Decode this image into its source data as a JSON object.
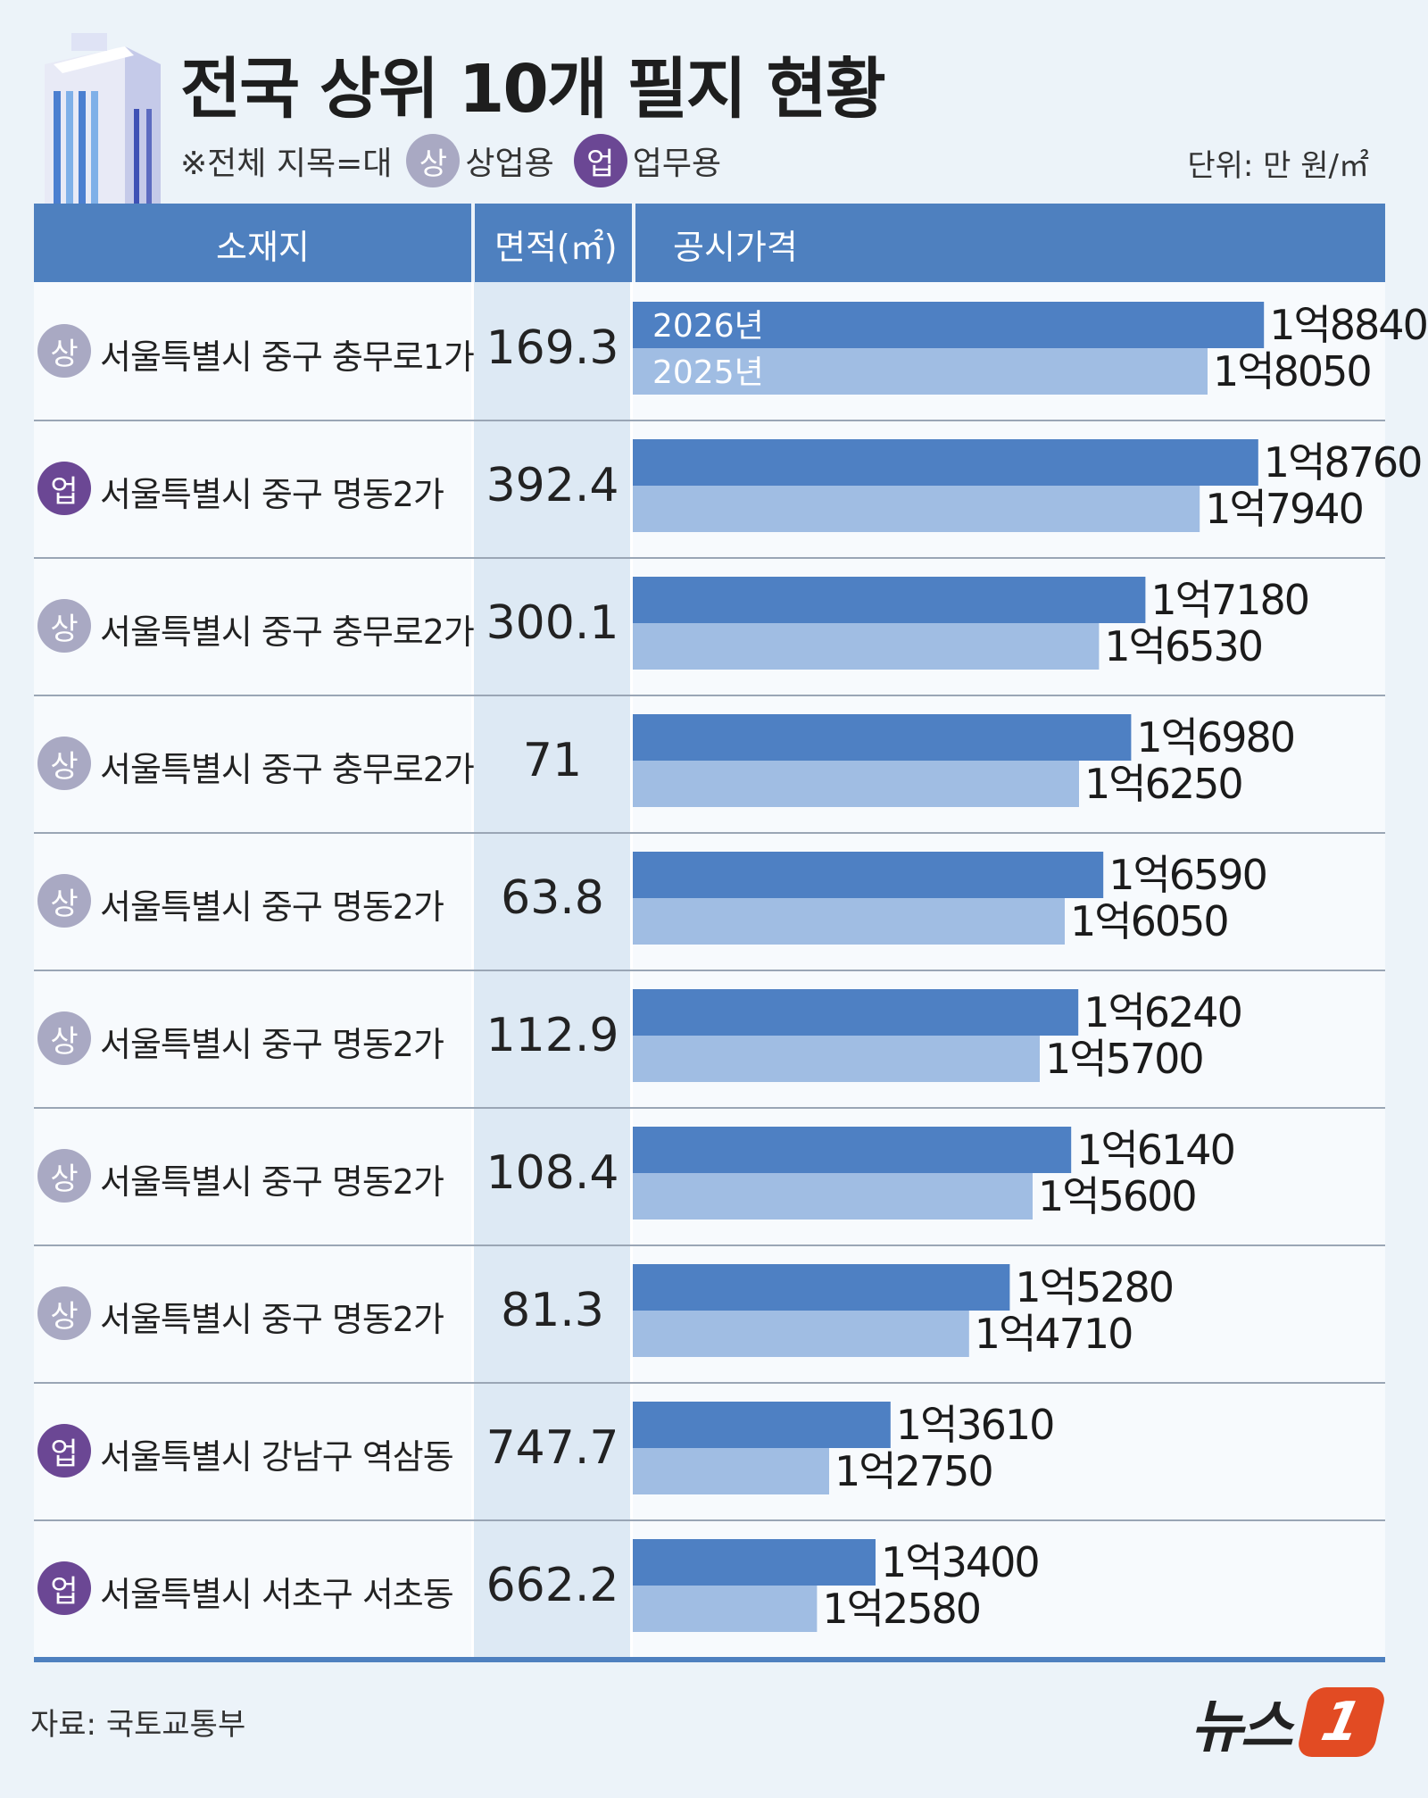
{
  "title": "전국 상위 10개 필지 현황",
  "legend": {
    "prefix": "※전체 지목=대",
    "items": [
      {
        "badge": "상",
        "label": "상업용",
        "color": "#a9a9c3"
      },
      {
        "badge": "업",
        "label": "업무용",
        "color": "#6b4794"
      }
    ]
  },
  "unit": "단위: 만 원/㎡",
  "headers": {
    "location": "소재지",
    "area": "면적(㎡)",
    "price": "공시가격"
  },
  "rows": [
    {
      "badge": "상",
      "type": "sang",
      "location": "서울특별시 중구 충무로1가",
      "area": "169.3"
    },
    {
      "badge": "업",
      "type": "eop",
      "location": "서울특별시 중구 명동2가",
      "area": "392.4"
    },
    {
      "badge": "상",
      "type": "sang",
      "location": "서울특별시 중구 충무로2가",
      "area": "300.1"
    },
    {
      "badge": "상",
      "type": "sang",
      "location": "서울특별시 중구 충무로2가",
      "area": "71"
    },
    {
      "badge": "상",
      "type": "sang",
      "location": "서울특별시 중구 명동2가",
      "area": "63.8"
    },
    {
      "badge": "상",
      "type": "sang",
      "location": "서울특별시 중구 명동2가",
      "area": "112.9"
    },
    {
      "badge": "상",
      "type": "sang",
      "location": "서울특별시 중구 명동2가",
      "area": "108.4"
    },
    {
      "badge": "상",
      "type": "sang",
      "location": "서울특별시 중구 명동2가",
      "area": "81.3"
    },
    {
      "badge": "업",
      "type": "eop",
      "location": "서울특별시 강남구 역삼동",
      "area": "747.7"
    },
    {
      "badge": "업",
      "type": "eop",
      "location": "서울특별시 서초구 서초동",
      "area": "662.2"
    }
  ],
  "chart_data": {
    "type": "bar",
    "orientation": "horizontal",
    "categories": [
      "서울특별시 중구 충무로1가",
      "서울특별시 중구 명동2가",
      "서울특별시 중구 충무로2가",
      "서울특별시 중구 충무로2가",
      "서울특별시 중구 명동2가",
      "서울특별시 중구 명동2가",
      "서울특별시 중구 명동2가",
      "서울특별시 중구 명동2가",
      "서울특별시 강남구 역삼동",
      "서울특별시 서초구 서초동"
    ],
    "series": [
      {
        "name": "2026년",
        "color": "#4e80c3",
        "values": [
          18840,
          18760,
          17180,
          16980,
          16590,
          16240,
          16140,
          15280,
          13610,
          13400
        ],
        "labels": [
          "1억8840",
          "1억8760",
          "1억7180",
          "1억6980",
          "1억6590",
          "1억6240",
          "1억6140",
          "1억5280",
          "1억3610",
          "1억3400"
        ]
      },
      {
        "name": "2025년",
        "color": "#a0bde3",
        "values": [
          18050,
          17940,
          16530,
          16250,
          16050,
          15700,
          15600,
          14710,
          12750,
          12580
        ],
        "labels": [
          "1억8050",
          "1억7940",
          "1억6530",
          "1억6250",
          "1억6050",
          "1억5700",
          "1억5600",
          "1억4710",
          "1억2750",
          "1억2580"
        ]
      }
    ],
    "title": "전국 상위 10개 필지 현황",
    "xlabel": "공시가격",
    "ylabel": "소재지",
    "unit": "만 원/㎡",
    "grid": false,
    "legend_placement": "inside-first-row"
  },
  "source": "자료: 국토교통부",
  "logo": {
    "text": "뉴스",
    "mark": "1"
  }
}
